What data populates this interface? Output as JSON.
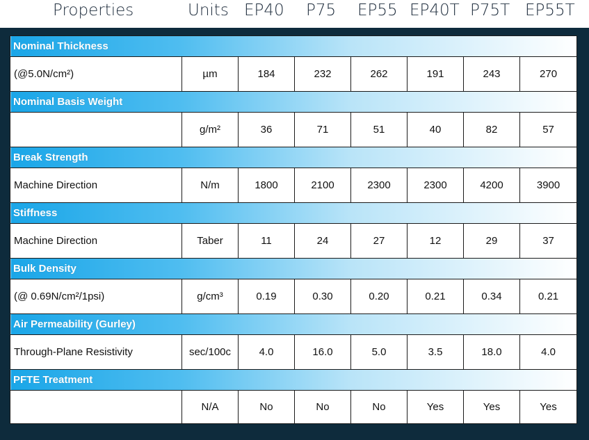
{
  "header": {
    "properties": "Properties",
    "units": "Units",
    "products": [
      "EP40",
      "P75",
      "EP55",
      "EP40T",
      "P75T",
      "EP55T"
    ]
  },
  "sections": [
    {
      "title": "Nominal Thickness",
      "label": "(@5.0N/cm²)",
      "unit": "µm",
      "values": [
        "184",
        "232",
        "262",
        "191",
        "243",
        "270"
      ]
    },
    {
      "title": "Nominal Basis Weight",
      "label": "",
      "unit": "g/m²",
      "values": [
        "36",
        "71",
        "51",
        "40",
        "82",
        "57"
      ]
    },
    {
      "title": "Break Strength",
      "label": "Machine Direction",
      "unit": "N/m",
      "values": [
        "1800",
        "2100",
        "2300",
        "2300",
        "4200",
        "3900"
      ]
    },
    {
      "title": "Stiffness",
      "label": "Machine Direction",
      "unit": "Taber",
      "values": [
        "11",
        "24",
        "27",
        "12",
        "29",
        "37"
      ]
    },
    {
      "title": "Bulk Density",
      "label": "(@ 0.69N/cm²/1psi)",
      "unit": "g/cm³",
      "values": [
        "0.19",
        "0.30",
        "0.20",
        "0.21",
        "0.34",
        "0.21"
      ]
    },
    {
      "title": "Air Permeability (Gurley)",
      "label": "Through-Plane Resistivity",
      "unit": "sec/100c",
      "values": [
        "4.0",
        "16.0",
        "5.0",
        "3.5",
        "18.0",
        "4.0"
      ]
    },
    {
      "title": "PFTE Treatment",
      "label": "",
      "unit": "N/A",
      "values": [
        "No",
        "No",
        "No",
        "Yes",
        "Yes",
        "Yes"
      ]
    }
  ],
  "colors": {
    "frame": "#0e2b3c",
    "section_start": "#1aa6e8",
    "section_end": "#ffffff",
    "header_text": "#1f2d3d"
  }
}
